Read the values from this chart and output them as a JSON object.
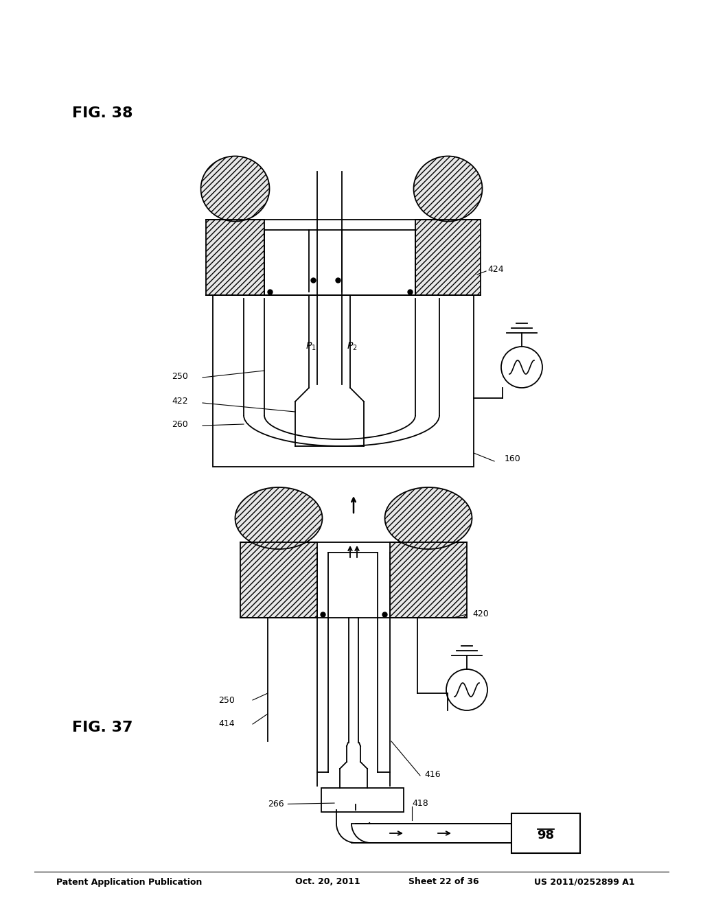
{
  "bg_color": "#ffffff",
  "line_color": "#000000",
  "header_text": "Patent Application Publication",
  "header_date": "Oct. 20, 2011",
  "header_sheet": "Sheet 22 of 36",
  "header_patent": "US 2011/0252899 A1",
  "fig37_label": "FIG. 37",
  "fig38_label": "FIG. 38"
}
